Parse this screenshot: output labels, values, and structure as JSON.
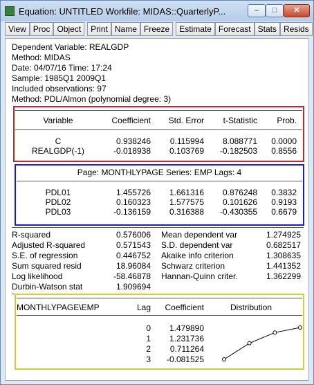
{
  "window": {
    "title": "Equation: UNTITLED   Workfile: MIDAS::QuarterlyP...",
    "minimize": "–",
    "maximize": "□",
    "close": "✕"
  },
  "toolbar": [
    "View",
    "Proc",
    "Object",
    "Print",
    "Name",
    "Freeze",
    "Estimate",
    "Forecast",
    "Stats",
    "Resids"
  ],
  "header": [
    "Dependent Variable: REALGDP",
    "Method: MIDAS",
    "Date: 04/07/16   Time: 17:24",
    "Sample: 1985Q1 2009Q1",
    "Included observations: 97",
    "Method: PDL/Almon (polynomial degree: 3)"
  ],
  "coef_table": {
    "headers": [
      "Variable",
      "Coefficient",
      "Std. Error",
      "t-Statistic",
      "Prob."
    ],
    "rows": [
      [
        "C",
        "0.938246",
        "0.115994",
        "8.088771",
        "0.0000"
      ],
      [
        "REALGDP(-1)",
        "-0.018938",
        "0.103769",
        "-0.182503",
        "0.8556"
      ]
    ]
  },
  "pdl_table": {
    "page_line": "Page: MONTHLYPAGE   Series: EMP   Lags: 4",
    "rows": [
      [
        "PDL01",
        "1.455726",
        "1.661316",
        "0.876248",
        "0.3832"
      ],
      [
        "PDL02",
        "0.160323",
        "1.577575",
        "0.101626",
        "0.9193"
      ],
      [
        "PDL03",
        "-0.136159",
        "0.316388",
        "-0.430355",
        "0.6679"
      ]
    ]
  },
  "stats": [
    [
      "R-squared",
      "0.576006",
      "Mean dependent var",
      "1.274925"
    ],
    [
      "Adjusted R-squared",
      "0.571543",
      "S.D. dependent var",
      "0.682517"
    ],
    [
      "S.E. of regression",
      "0.446752",
      "Akaike info criterion",
      "1.308635"
    ],
    [
      "Sum squared resid",
      "18.96084",
      "Schwarz criterion",
      "1.441352"
    ],
    [
      "Log likelihood",
      "-58.46878",
      "Hannan-Quinn criter.",
      "1.362299"
    ],
    [
      "Durbin-Watson stat",
      "1.909694",
      "",
      ""
    ]
  ],
  "lag_table": {
    "headers": [
      "MONTHLYPAGE\\EMP",
      "Lag",
      "Coefficient",
      "Distribution"
    ],
    "rows": [
      [
        "0",
        "1.479890"
      ],
      [
        "1",
        "1.231736"
      ],
      [
        "2",
        "0.711264"
      ],
      [
        "3",
        "-0.081525"
      ]
    ]
  },
  "colors": {
    "coef_box": "#c0282d",
    "pdl_box": "#1c1cc8",
    "lag_box": "#cfcf3a"
  }
}
